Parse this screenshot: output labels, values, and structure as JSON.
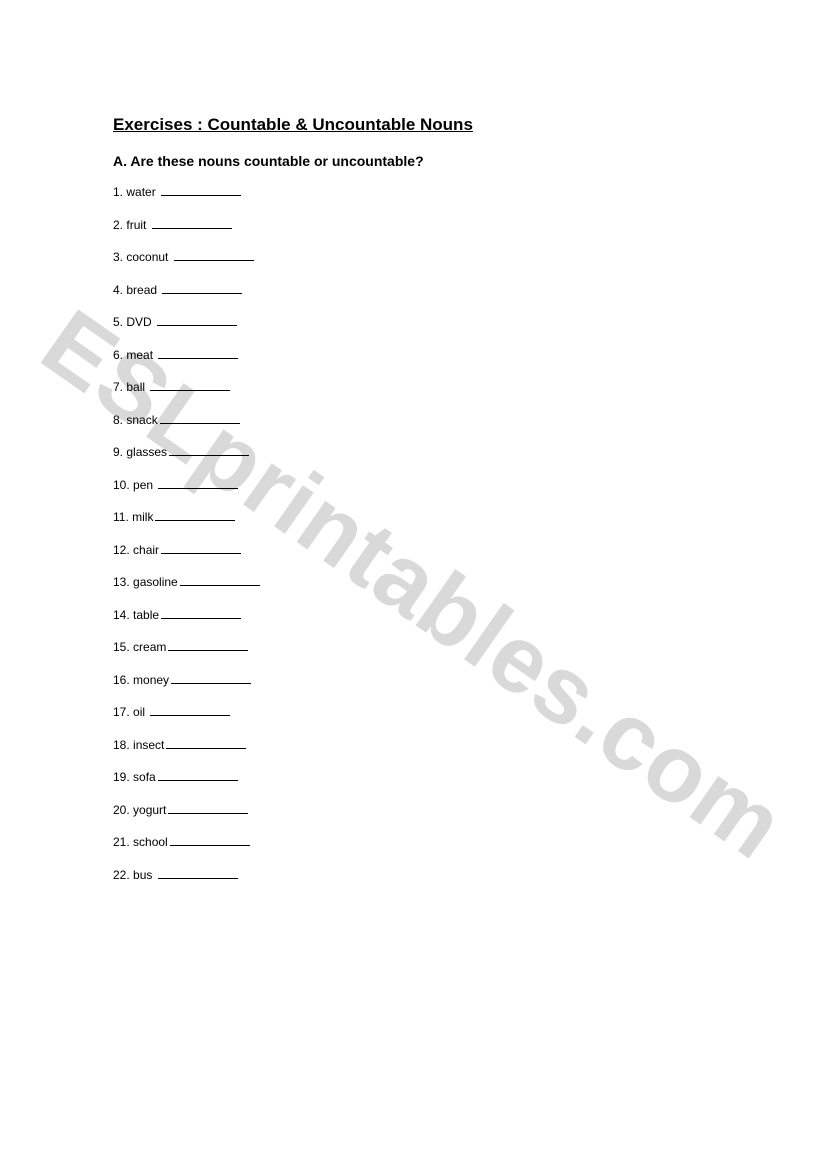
{
  "title": "Exercises : Countable & Uncountable Nouns",
  "subtitle": "A. Are these nouns countable or uncountable?",
  "watermark": "ESLprintables.com",
  "items": [
    {
      "n": "1.",
      "w": "water",
      "gap": true
    },
    {
      "n": "2.",
      "w": "fruit",
      "gap": true
    },
    {
      "n": "3.",
      "w": "coconut",
      "gap": true
    },
    {
      "n": "4.",
      "w": "bread",
      "gap": true
    },
    {
      "n": "5.",
      "w": "DVD",
      "gap": true
    },
    {
      "n": "6.",
      "w": "meat",
      "gap": true
    },
    {
      "n": "7.",
      "w": "ball",
      "gap": true
    },
    {
      "n": "8.",
      "w": "snack",
      "gap": false
    },
    {
      "n": "9.",
      "w": "glasses",
      "gap": false
    },
    {
      "n": "10.",
      "w": "pen",
      "gap": true
    },
    {
      "n": "11.",
      "w": "milk",
      "gap": false
    },
    {
      "n": "12.",
      "w": "chair",
      "gap": false
    },
    {
      "n": "13.",
      "w": "gasoline",
      "gap": false
    },
    {
      "n": "14.",
      "w": "table",
      "gap": false
    },
    {
      "n": "15.",
      "w": "cream",
      "gap": false
    },
    {
      "n": "16.",
      "w": "money",
      "gap": false
    },
    {
      "n": "17.",
      "w": "oil",
      "gap": true
    },
    {
      "n": "18.",
      "w": "insect",
      "gap": false
    },
    {
      "n": "19.",
      "w": "sofa",
      "gap": false
    },
    {
      "n": "20.",
      "w": "yogurt",
      "gap": false
    },
    {
      "n": "21.",
      "w": "school",
      "gap": false
    },
    {
      "n": "22.",
      "w": "bus",
      "gap": true
    }
  ]
}
